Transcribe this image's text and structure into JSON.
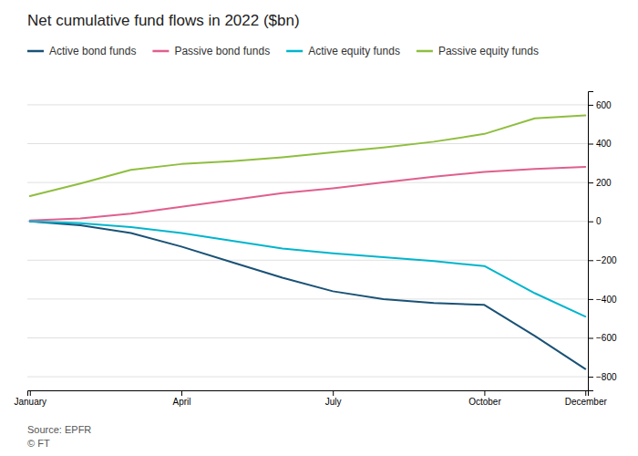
{
  "chart_data": {
    "type": "line",
    "title": "Net cumulative fund flows in 2022 ($bn)",
    "annotations": [
      "Source: EPFR",
      "© FT"
    ],
    "categories": [
      "January",
      null,
      null,
      "April",
      null,
      null,
      "July",
      null,
      null,
      "October",
      null,
      "December"
    ],
    "series": [
      {
        "name": "Active bond funds",
        "color": "#1a5276",
        "values": [
          0,
          -20,
          -60,
          -130,
          -210,
          -290,
          -360,
          -400,
          -420,
          -430,
          -590,
          -760
        ]
      },
      {
        "name": "Passive bond funds",
        "color": "#e05f8e",
        "values": [
          5,
          15,
          40,
          75,
          110,
          145,
          170,
          200,
          230,
          255,
          270,
          280
        ]
      },
      {
        "name": "Active equity funds",
        "color": "#00b5cc",
        "values": [
          0,
          -10,
          -30,
          -60,
          -100,
          -140,
          -165,
          -185,
          -205,
          -230,
          -370,
          -490
        ]
      },
      {
        "name": "Passive equity funds",
        "color": "#8fbe3f",
        "values": [
          130,
          195,
          265,
          295,
          310,
          330,
          355,
          380,
          410,
          450,
          530,
          545
        ]
      }
    ],
    "ylim": [
      -870,
      670
    ],
    "yticks": [
      {
        "value": -800,
        "label": "−800"
      },
      {
        "value": -600,
        "label": "−600"
      },
      {
        "value": -400,
        "label": "−400"
      },
      {
        "value": -200,
        "label": "−200"
      },
      0,
      200,
      400,
      600
    ],
    "grid": true,
    "legend": "top"
  }
}
